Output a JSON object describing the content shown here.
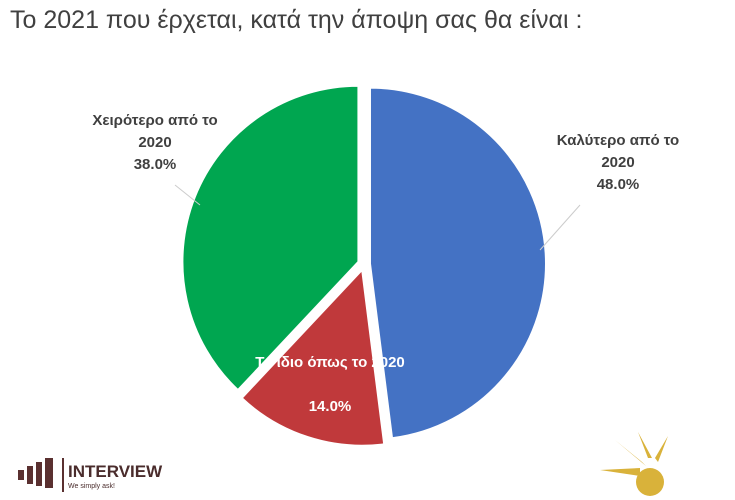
{
  "chart_data": {
    "type": "pie",
    "title": "Το 2021 που έρχεται, κατά την άποψη σας θα είναι :",
    "categories": [
      "Καλύτερο από το 2020",
      "Το ίδιο όπως το 2020",
      "Χειρότερο από το 2020"
    ],
    "values": [
      48,
      14,
      38
    ],
    "value_labels": [
      "48.0%",
      "14.0%",
      "38.0%"
    ],
    "colors": [
      "#4472c4",
      "#c0393b",
      "#00a650"
    ]
  },
  "logo": {
    "name": "INTERVIEW",
    "tagline": "We simply ask!"
  }
}
